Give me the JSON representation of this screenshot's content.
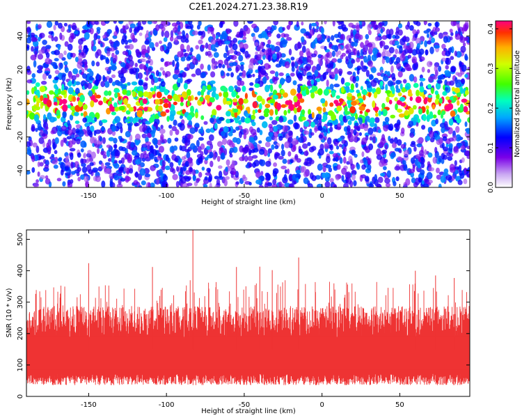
{
  "title": "C2E1.2024.271.23.38.R19",
  "chart_data": [
    {
      "type": "heatmap",
      "xlabel": "Height of straight line (km)",
      "ylabel": "Frequency (Hz)",
      "xlim": [
        -190,
        95
      ],
      "ylim": [
        -50,
        49
      ],
      "x_ticks": [
        -150,
        -100,
        -50,
        0,
        50
      ],
      "y_ticks": [
        -40,
        -20,
        0,
        20,
        40
      ],
      "description_band": {
        "center_hz": 0,
        "half_width_hz": 8
      },
      "colorbar": {
        "label": "Normalized spectral amplitude",
        "range": [
          0.0,
          0.42
        ],
        "ticks": [
          0.0,
          0.1,
          0.2,
          0.3,
          0.4
        ],
        "tick_labels": [
          "0.0",
          "0.1",
          "0.2",
          "0.3",
          "0.4"
        ],
        "colormap": "rainbow"
      }
    },
    {
      "type": "line",
      "xlabel": "Height of straight line (km)",
      "ylabel": "SNR (10 * v/v)",
      "xlim": [
        -190,
        95
      ],
      "ylim": [
        0,
        530
      ],
      "x_ticks": [
        -150,
        -100,
        -50,
        0,
        50
      ],
      "y_ticks": [
        0,
        100,
        200,
        300,
        400,
        500
      ],
      "color": "#ee3333",
      "baseline_band": [
        60,
        230
      ],
      "notable_peaks": [
        {
          "x": -83,
          "y": 530
        },
        {
          "x": -150,
          "y": 424
        },
        {
          "x": -109,
          "y": 412
        },
        {
          "x": -55,
          "y": 412
        },
        {
          "x": -40,
          "y": 413
        },
        {
          "x": -15,
          "y": 442
        },
        {
          "x": -32,
          "y": 402
        },
        {
          "x": 60,
          "y": 400
        },
        {
          "x": 73,
          "y": 385
        },
        {
          "x": 85,
          "y": 377
        }
      ]
    }
  ]
}
